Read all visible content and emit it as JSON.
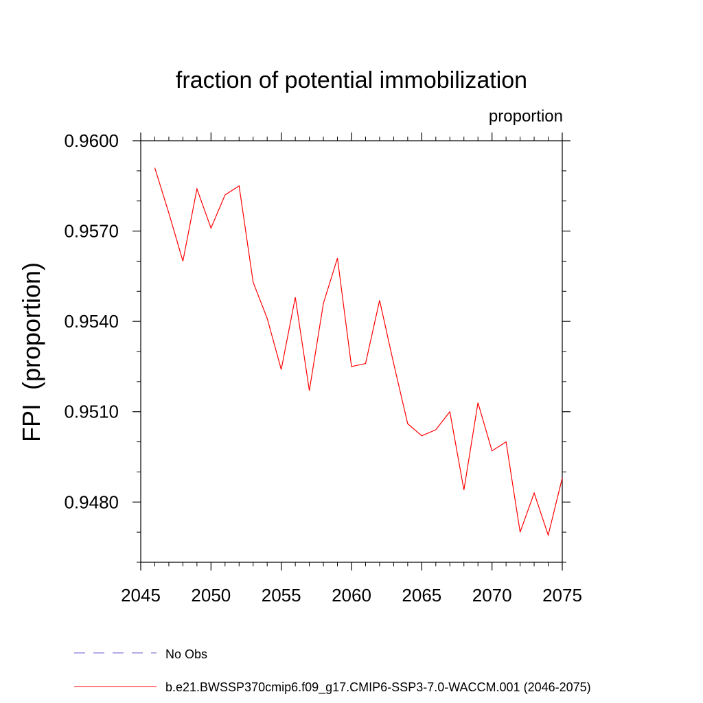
{
  "chart_data": {
    "type": "line",
    "title": "fraction of potential immobilization",
    "units_label": "proportion",
    "ylabel": "FPI  (proportion)",
    "xlabel": "",
    "xlim": [
      2045,
      2075
    ],
    "ylim": [
      0.946,
      0.96
    ],
    "x_ticks": [
      2045,
      2050,
      2055,
      2060,
      2065,
      2070,
      2075
    ],
    "y_ticks": [
      0.948,
      0.951,
      0.954,
      0.957,
      0.96
    ],
    "grid": false,
    "legend_position": "bottom",
    "series": [
      {
        "name": "b.e21.BWSSP370cmip6.f09_g17.CMIP6-SSP3-7.0-WACCM.001 (2046-2075)",
        "color": "#ff0000",
        "style": "solid",
        "x": [
          2046,
          2047,
          2048,
          2049,
          2050,
          2051,
          2052,
          2053,
          2054,
          2055,
          2056,
          2057,
          2058,
          2059,
          2060,
          2061,
          2062,
          2063,
          2064,
          2065,
          2066,
          2067,
          2068,
          2069,
          2070,
          2071,
          2072,
          2073,
          2074,
          2075
        ],
        "y": [
          0.9591,
          0.9576,
          0.956,
          0.9584,
          0.9571,
          0.9582,
          0.9585,
          0.9553,
          0.9541,
          0.9524,
          0.9548,
          0.9517,
          0.9546,
          0.9561,
          0.9525,
          0.9526,
          0.9547,
          0.9526,
          0.9506,
          0.9502,
          0.9504,
          0.951,
          0.9484,
          0.9513,
          0.9497,
          0.95,
          0.947,
          0.9483,
          0.9469,
          0.9488
        ]
      }
    ],
    "legend": [
      {
        "label": "No Obs",
        "color": "#6a5acd",
        "style": "dashed"
      },
      {
        "label": "b.e21.BWSSP370cmip6.f09_g17.CMIP6-SSP3-7.0-WACCM.001 (2046-2075)",
        "color": "#ff0000",
        "style": "solid"
      }
    ]
  }
}
